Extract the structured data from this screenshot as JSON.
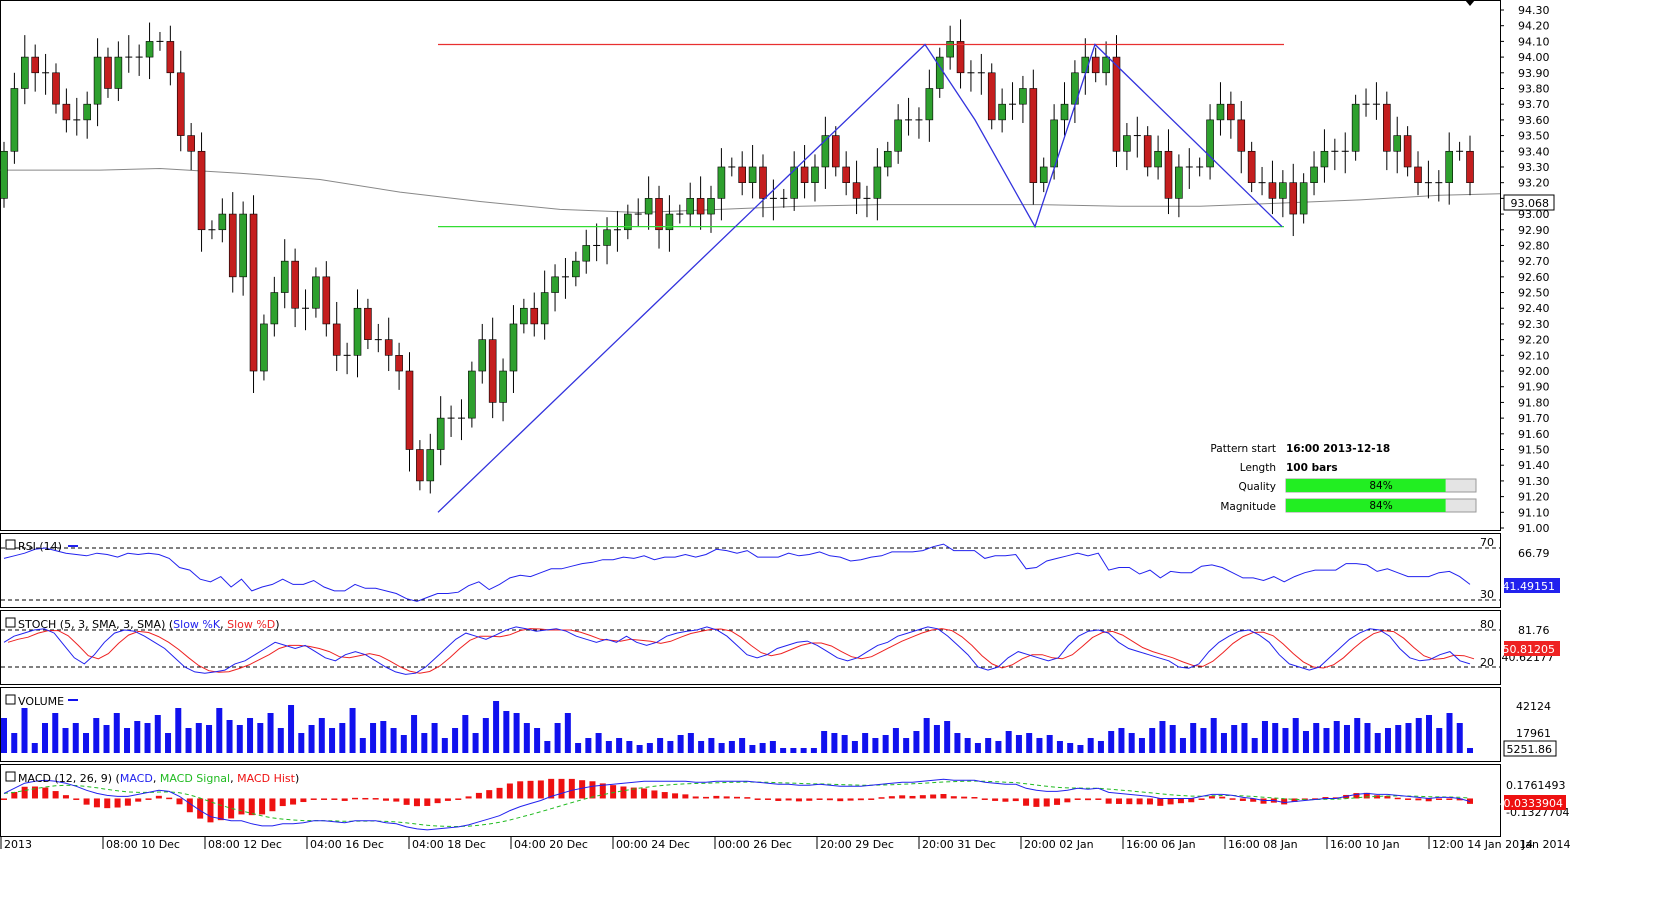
{
  "chart_data": {
    "type": "candlestick",
    "y_ticks": [
      "94.30",
      "94.20",
      "94.10",
      "94.00",
      "93.90",
      "93.80",
      "93.70",
      "93.60",
      "93.50",
      "93.40",
      "93.30",
      "93.20",
      "93.10",
      "93.00",
      "92.90",
      "92.80",
      "92.70",
      "92.60",
      "92.50",
      "92.40",
      "92.30",
      "92.20",
      "92.10",
      "92.00",
      "91.90",
      "91.80",
      "91.70",
      "91.60",
      "91.50",
      "91.40",
      "91.30",
      "91.20",
      "91.10",
      "91.00"
    ],
    "ylim": [
      91.0,
      94.3
    ],
    "x_labels": [
      "2013",
      "08:00 10 Dec",
      "08:00 12 Dec",
      "04:00 16 Dec",
      "04:00 18 Dec",
      "04:00 20 Dec",
      "00:00 24 Dec",
      "00:00 26 Dec",
      "20:00 29 Dec",
      "20:00 31 Dec",
      "20:00 02 Jan",
      "16:00 06 Jan",
      "16:00 08 Jan",
      "16:00 10 Jan",
      "12:00 14 Jan 2014",
      "Jan 2014"
    ],
    "last_price": "93.068",
    "resistance_level": 94.08,
    "support_level": 92.92,
    "ma_line": [
      [
        0,
        93.28
      ],
      [
        100,
        93.28
      ],
      [
        160,
        93.29
      ],
      [
        240,
        93.26
      ],
      [
        320,
        93.22
      ],
      [
        400,
        93.14
      ],
      [
        480,
        93.08
      ],
      [
        560,
        93.03
      ],
      [
        640,
        93.01
      ],
      [
        720,
        93.03
      ],
      [
        800,
        93.05
      ],
      [
        880,
        93.06
      ],
      [
        960,
        93.06
      ],
      [
        1040,
        93.06
      ],
      [
        1120,
        93.05
      ],
      [
        1200,
        93.05
      ],
      [
        1280,
        93.07
      ],
      [
        1360,
        93.09
      ],
      [
        1440,
        93.12
      ],
      [
        1500,
        93.13
      ]
    ],
    "pattern_lines": [
      [
        438,
        91.1
      ],
      [
        925,
        94.08
      ],
      [
        975,
        93.6
      ],
      [
        1035,
        92.92
      ],
      [
        1095,
        94.08
      ],
      [
        1282,
        92.92
      ]
    ],
    "closes": [
      93.4,
      93.8,
      94.0,
      93.9,
      93.9,
      93.7,
      93.6,
      93.6,
      93.7,
      94.0,
      93.8,
      94.0,
      94.0,
      94.0,
      94.1,
      94.1,
      93.9,
      93.5,
      93.4,
      92.9,
      92.9,
      93.0,
      92.6,
      93.0,
      92.0,
      92.3,
      92.5,
      92.7,
      92.4,
      92.4,
      92.6,
      92.3,
      92.1,
      92.1,
      92.4,
      92.2,
      92.2,
      92.1,
      92.0,
      91.5,
      91.3,
      91.5,
      91.7,
      91.7,
      91.7,
      92.0,
      92.2,
      91.8,
      92.0,
      92.3,
      92.4,
      92.3,
      92.5,
      92.6,
      92.6,
      92.7,
      92.8,
      92.8,
      92.9,
      92.9,
      93.0,
      93.0,
      93.1,
      92.9,
      93.0,
      93.0,
      93.1,
      93.0,
      93.1,
      93.3,
      93.3,
      93.2,
      93.3,
      93.1,
      93.1,
      93.1,
      93.3,
      93.2,
      93.3,
      93.5,
      93.3,
      93.2,
      93.1,
      93.1,
      93.3,
      93.4,
      93.6,
      93.6,
      93.6,
      93.8,
      94.0,
      94.1,
      93.9,
      93.9,
      93.9,
      93.6,
      93.7,
      93.7,
      93.8,
      93.2,
      93.3,
      93.6,
      93.7,
      93.9,
      94.0,
      93.9,
      94.0,
      93.4,
      93.5,
      93.5,
      93.3,
      93.4,
      93.1,
      93.3,
      93.3,
      93.3,
      93.6,
      93.7,
      93.6,
      93.4,
      93.2,
      93.2,
      93.1,
      93.2,
      93.0,
      93.2,
      93.3,
      93.4,
      93.4,
      93.4,
      93.7,
      93.7,
      93.7,
      93.4,
      93.5,
      93.3,
      93.2,
      93.2,
      93.2,
      93.4,
      93.4,
      93.2
    ]
  },
  "indicators": {
    "rsi": {
      "label": "RSI (14)",
      "level_high": "70",
      "level_low": "30",
      "level_high_value": 70,
      "level_low_value": 30,
      "tick_value": "66.79",
      "current": "41.49151",
      "values": [
        62,
        64,
        66,
        69,
        70,
        68,
        66,
        65,
        64,
        66,
        65,
        63,
        66,
        65,
        66,
        65,
        62,
        55,
        53,
        46,
        44,
        48,
        40,
        46,
        37,
        40,
        42,
        46,
        42,
        42,
        45,
        40,
        37,
        37,
        42,
        39,
        39,
        37,
        35,
        31,
        29,
        32,
        35,
        35,
        36,
        41,
        44,
        38,
        42,
        47,
        49,
        48,
        51,
        54,
        54,
        56,
        58,
        59,
        61,
        61,
        63,
        62,
        64,
        61,
        63,
        63,
        65,
        63,
        65,
        69,
        68,
        66,
        68,
        63,
        63,
        63,
        66,
        64,
        65,
        67,
        64,
        63,
        60,
        61,
        63,
        64,
        67,
        67,
        67,
        68,
        71,
        73,
        68,
        68,
        68,
        62,
        64,
        64,
        65,
        54,
        55,
        60,
        62,
        64,
        66,
        64,
        66,
        53,
        55,
        55,
        50,
        53,
        47,
        52,
        51,
        51,
        56,
        57,
        55,
        51,
        47,
        47,
        45,
        48,
        44,
        48,
        51,
        53,
        53,
        53,
        58,
        58,
        57,
        52,
        54,
        51,
        48,
        48,
        48,
        51,
        52,
        48,
        42
      ]
    },
    "stoch": {
      "label": "STOCH (5, 3, SMA, 3, SMA)",
      "label_k": "Slow %K",
      "label_d": "Slow %D",
      "level_high": "80",
      "level_low": "20",
      "level_high_value": 80,
      "level_low_value": 20,
      "tick_value": "81.76",
      "current_k": "40.62177",
      "current_d": "50.81205",
      "k": [
        60,
        70,
        75,
        80,
        82,
        75,
        55,
        35,
        25,
        40,
        60,
        75,
        80,
        78,
        70,
        60,
        50,
        35,
        20,
        12,
        10,
        12,
        15,
        25,
        30,
        40,
        50,
        60,
        55,
        50,
        55,
        45,
        35,
        30,
        40,
        45,
        40,
        30,
        20,
        12,
        8,
        10,
        20,
        35,
        50,
        65,
        75,
        70,
        65,
        72,
        80,
        85,
        82,
        78,
        80,
        82,
        78,
        70,
        65,
        60,
        65,
        60,
        70,
        60,
        55,
        60,
        70,
        75,
        78,
        80,
        85,
        80,
        70,
        55,
        40,
        35,
        40,
        50,
        55,
        60,
        62,
        55,
        45,
        35,
        30,
        35,
        45,
        55,
        60,
        70,
        75,
        80,
        85,
        82,
        70,
        55,
        40,
        20,
        15,
        20,
        35,
        45,
        40,
        35,
        30,
        35,
        55,
        70,
        78,
        80,
        75,
        60,
        50,
        45,
        40,
        35,
        30,
        20,
        18,
        25,
        45,
        60,
        70,
        78,
        80,
        72,
        60,
        40,
        25,
        20,
        15,
        20,
        35,
        50,
        65,
        75,
        82,
        80,
        70,
        50,
        35,
        30,
        32,
        40,
        45,
        30,
        25
      ]
    },
    "volume": {
      "label": "VOLUME",
      "tick_high": "42124",
      "tick_mid": "17961",
      "current": "5251.86",
      "max": 60000,
      "values": [
        35000,
        20000,
        45000,
        10000,
        30000,
        40000,
        25000,
        30000,
        20000,
        35000,
        28000,
        40000,
        25000,
        32000,
        30000,
        38000,
        20000,
        45000,
        25000,
        30000,
        28000,
        45000,
        33000,
        28000,
        35000,
        30000,
        40000,
        25000,
        48000,
        20000,
        28000,
        35000,
        25000,
        30000,
        45000,
        15000,
        30000,
        32000,
        25000,
        18000,
        38000,
        20000,
        30000,
        15000,
        25000,
        38000,
        20000,
        35000,
        52000,
        42000,
        40000,
        30000,
        25000,
        12000,
        30000,
        40000,
        10000,
        15000,
        20000,
        12000,
        15000,
        12000,
        8000,
        10000,
        15000,
        12000,
        18000,
        20000,
        12000,
        15000,
        10000,
        12000,
        15000,
        8000,
        10000,
        12000,
        5000,
        5000,
        5000,
        5000,
        22000,
        20000,
        18000,
        12000,
        20000,
        15000,
        18000,
        25000,
        15000,
        22000,
        35000,
        28000,
        32000,
        20000,
        15000,
        10000,
        15000,
        12000,
        22000,
        18000,
        20000,
        15000,
        18000,
        12000,
        10000,
        8000,
        15000,
        12000,
        22000,
        25000,
        20000,
        15000,
        25000,
        32000,
        28000,
        15000,
        30000,
        25000,
        35000,
        20000,
        28000,
        30000,
        15000,
        32000,
        30000,
        25000,
        35000,
        22000,
        30000,
        25000,
        32000,
        28000,
        35000,
        30000,
        20000,
        25000,
        28000,
        30000,
        35000,
        38000,
        25000,
        40000,
        30000,
        5000
      ]
    },
    "macd": {
      "label": "MACD (12, 26, 9)",
      "label_macd": "MACD",
      "label_signal": "MACD Signal",
      "label_hist": "MACD Hist",
      "tick_high": "0.1761493",
      "tick_low": "-0.1327704",
      "current": "-0.0333904",
      "ylim": [
        -0.35,
        0.3
      ],
      "macd": [
        0.05,
        0.1,
        0.15,
        0.17,
        0.18,
        0.17,
        0.15,
        0.12,
        0.08,
        0.05,
        0.03,
        0.02,
        0.02,
        0.04,
        0.06,
        0.08,
        0.07,
        0.02,
        -0.05,
        -0.12,
        -0.18,
        -0.2,
        -0.22,
        -0.22,
        -0.25,
        -0.27,
        -0.27,
        -0.25,
        -0.25,
        -0.24,
        -0.22,
        -0.22,
        -0.23,
        -0.24,
        -0.22,
        -0.22,
        -0.22,
        -0.24,
        -0.25,
        -0.28,
        -0.3,
        -0.31,
        -0.3,
        -0.29,
        -0.28,
        -0.26,
        -0.23,
        -0.2,
        -0.17,
        -0.12,
        -0.08,
        -0.05,
        -0.02,
        0.02,
        0.05,
        0.08,
        0.1,
        0.12,
        0.13,
        0.14,
        0.15,
        0.16,
        0.17,
        0.17,
        0.17,
        0.17,
        0.17,
        0.16,
        0.16,
        0.17,
        0.17,
        0.17,
        0.17,
        0.16,
        0.15,
        0.14,
        0.14,
        0.13,
        0.13,
        0.14,
        0.13,
        0.12,
        0.12,
        0.12,
        0.13,
        0.14,
        0.15,
        0.16,
        0.16,
        0.17,
        0.18,
        0.19,
        0.18,
        0.18,
        0.18,
        0.16,
        0.15,
        0.14,
        0.14,
        0.1,
        0.08,
        0.07,
        0.07,
        0.08,
        0.1,
        0.09,
        0.1,
        0.06,
        0.05,
        0.04,
        0.03,
        0.02,
        0.0,
        0.0,
        0.0,
        0.0,
        0.02,
        0.04,
        0.04,
        0.03,
        0.01,
        0.0,
        -0.02,
        -0.02,
        -0.04,
        -0.03,
        -0.02,
        -0.01,
        0.0,
        0.0,
        0.02,
        0.04,
        0.05,
        0.04,
        0.04,
        0.03,
        0.02,
        0.01,
        0.0,
        0.01,
        0.01,
        0.0,
        -0.03
      ]
    }
  },
  "pattern_info": {
    "start_label": "Pattern start",
    "start_value": "16:00 2013-12-18",
    "length_label": "Length",
    "length_value": "100 bars",
    "quality_label": "Quality",
    "quality_value": "84%",
    "quality_fraction": 0.84,
    "magnitude_label": "Magnitude",
    "magnitude_value": "84%",
    "magnitude_fraction": 0.84
  },
  "colors": {
    "bull": "#2ea02e",
    "bear": "#c41e1e",
    "resistance": "#e83030",
    "support": "#33dd33",
    "pattern": "#3333dd",
    "ma": "#888888",
    "rsi": "#2222ee",
    "stoch_k": "#2222ee",
    "stoch_d": "#ee2222",
    "volume": "#1111ee",
    "macd_line": "#2222ee",
    "macd_signal": "#22bb22",
    "macd_hist": "#ee1111",
    "progress": "#22ee22"
  }
}
